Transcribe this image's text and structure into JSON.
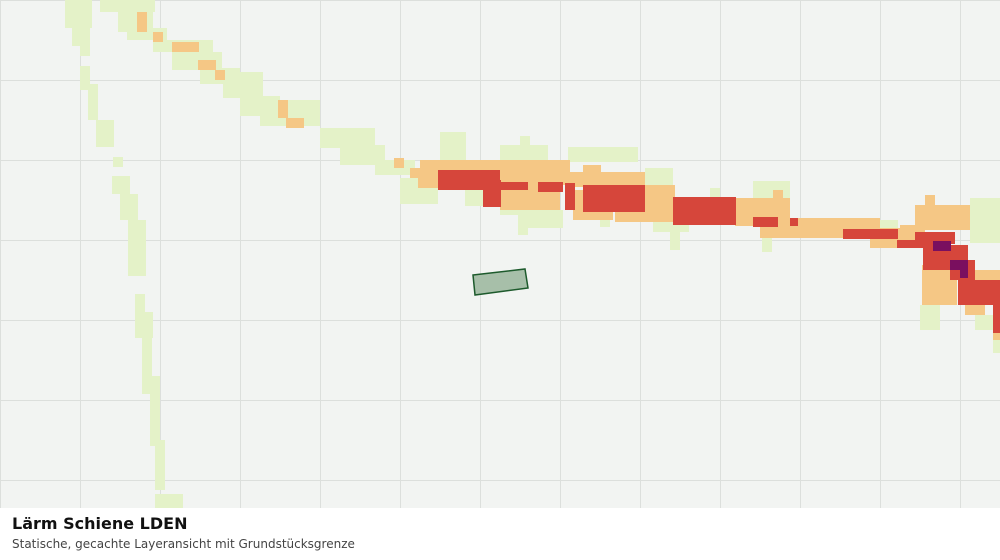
{
  "map": {
    "title": "Lärm Schiene LDEN",
    "subtitle": "Statische, gecachte Layeransicht mit Grundstücksgrenze"
  }
}
